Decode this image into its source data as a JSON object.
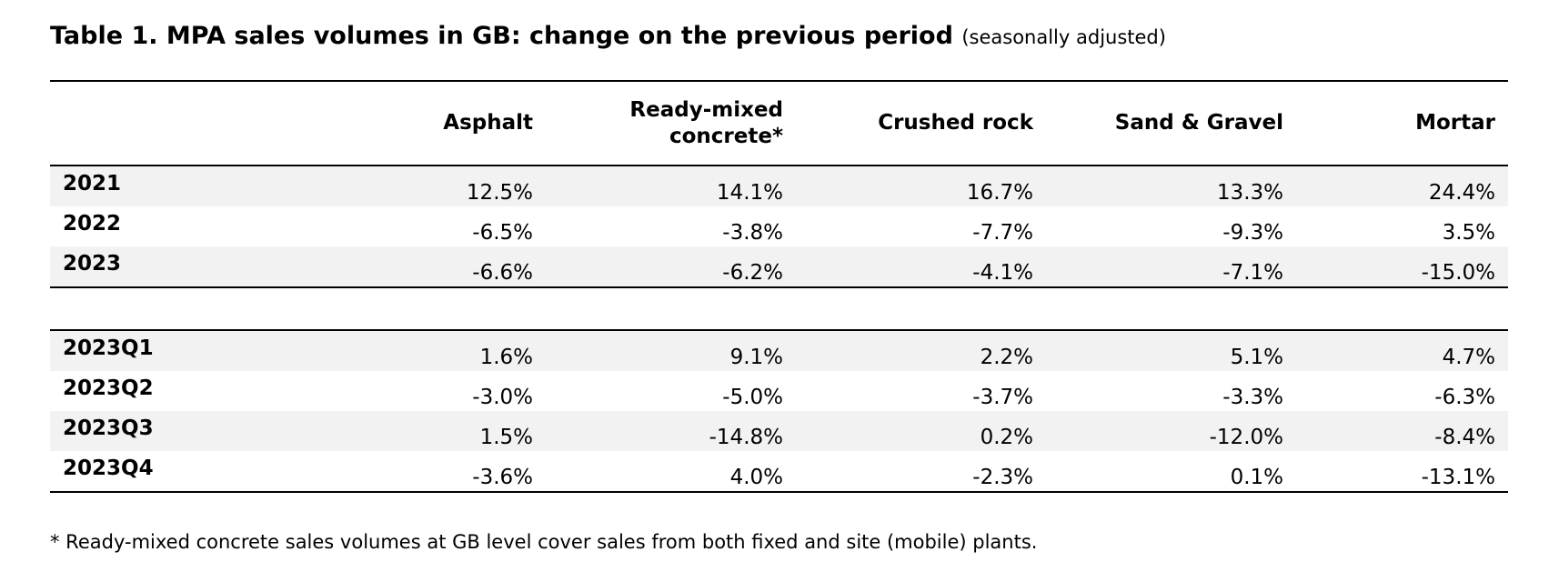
{
  "title": {
    "main": "Table 1. MPA sales volumes in GB: change on the previous period",
    "note": "(seasonally adjusted)"
  },
  "columns": [
    "",
    "Asphalt",
    "Ready-mixed concrete*",
    "Crushed rock",
    "Sand & Gravel",
    "Mortar"
  ],
  "column_lines": {
    "readymix_line1": "Ready-mixed",
    "readymix_line2": "concrete*"
  },
  "annual_rows": [
    {
      "label": "2021",
      "values": [
        "12.5%",
        "14.1%",
        "16.7%",
        "13.3%",
        "24.4%"
      ]
    },
    {
      "label": "2022",
      "values": [
        "-6.5%",
        "-3.8%",
        "-7.7%",
        "-9.3%",
        "3.5%"
      ]
    },
    {
      "label": "2023",
      "values": [
        "-6.6%",
        "-6.2%",
        "-4.1%",
        "-7.1%",
        "-15.0%"
      ]
    }
  ],
  "quarterly_rows": [
    {
      "label": "2023Q1",
      "values": [
        "1.6%",
        "9.1%",
        "2.2%",
        "5.1%",
        "4.7%"
      ]
    },
    {
      "label": "2023Q2",
      "values": [
        "-3.0%",
        "-5.0%",
        "-3.7%",
        "-3.3%",
        "-6.3%"
      ]
    },
    {
      "label": "2023Q3",
      "values": [
        "1.5%",
        "-14.8%",
        "0.2%",
        "-12.0%",
        "-8.4%"
      ]
    },
    {
      "label": "2023Q4",
      "values": [
        "-3.6%",
        "4.0%",
        "-2.3%",
        "0.1%",
        "-13.1%"
      ]
    }
  ],
  "footnote": "* Ready-mixed concrete sales volumes at GB level cover sales from both fixed and site (mobile) plants.",
  "colors": {
    "row_shade": "#f2f2f2",
    "rule": "#000000"
  }
}
